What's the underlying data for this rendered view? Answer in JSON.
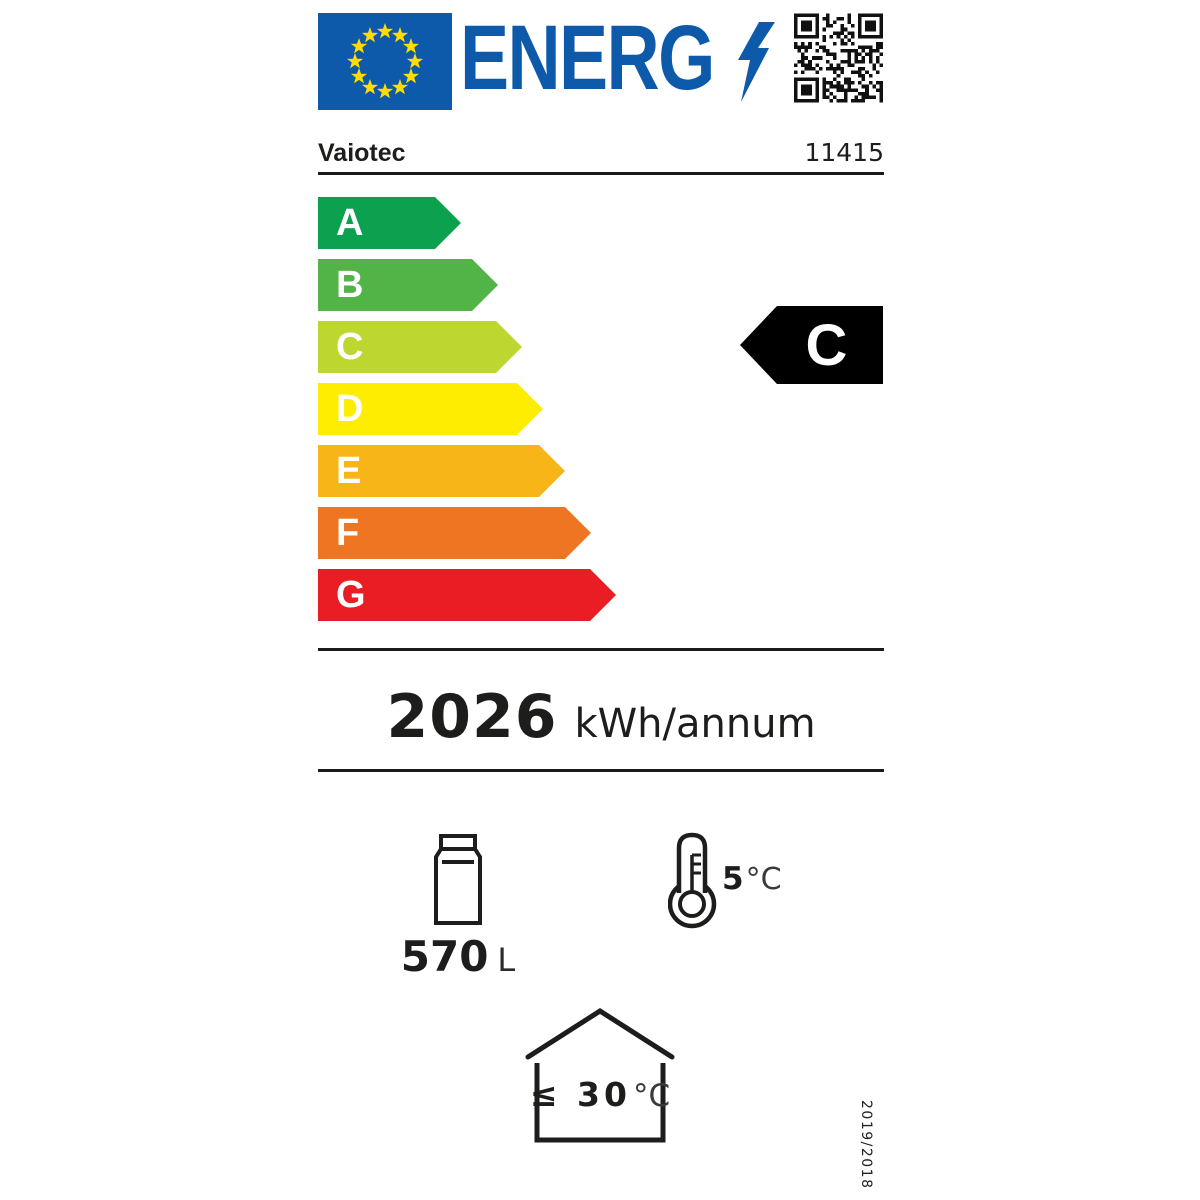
{
  "header": {
    "logo_text": "ENERG"
  },
  "supplier": {
    "brand": "Vaiotec",
    "model": "11415"
  },
  "rating": {
    "selected": "C",
    "scale": [
      {
        "grade": "A",
        "color": "#0ca14e"
      },
      {
        "grade": "B",
        "color": "#52b347"
      },
      {
        "grade": "C",
        "color": "#bed630"
      },
      {
        "grade": "D",
        "color": "#ffed00"
      },
      {
        "grade": "E",
        "color": "#f8b517"
      },
      {
        "grade": "F",
        "color": "#ee7623"
      },
      {
        "grade": "G",
        "color": "#ea1c24"
      }
    ]
  },
  "energy": {
    "value": "2026",
    "unit": "kWh/annum"
  },
  "features": {
    "capacity": {
      "value": "570",
      "unit": "L"
    },
    "temperature": {
      "value": "5",
      "unit": "°C"
    },
    "ambient": {
      "value": "≤ 30",
      "unit": "°C"
    }
  },
  "regulation": "2019/2018",
  "colors": {
    "eu_blue": "#0d59aa",
    "star_yellow": "#ffdd00",
    "indicator_black": "#000000"
  }
}
